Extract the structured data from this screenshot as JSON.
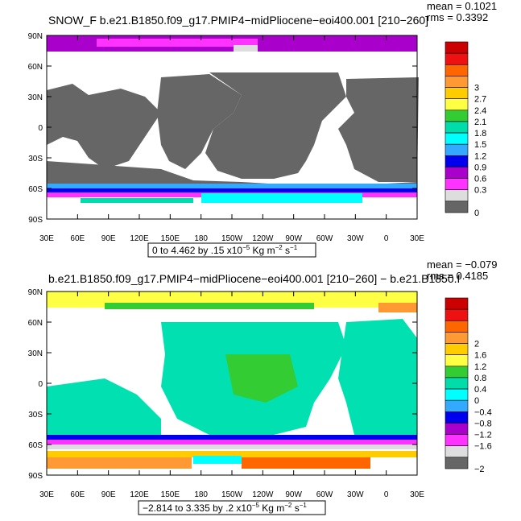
{
  "panels": [
    {
      "id": "top",
      "title": "SNOW_F  b.e21.B1850.f09_g17.PMIP4−midPliocene−eoi400.001  [210−260]",
      "stats": [
        "mean  =  0.1021",
        "rms  =  0.3392"
      ],
      "range_note": "0 to 4.462 by .15 x10",
      "range_exp": "−5",
      "range_units": " Kg m",
      "range_units_exp": "−2",
      "range_units_tail": " s",
      "range_units_tail_exp": "−1",
      "colorbar_labels": [
        "3",
        "2.7",
        "2.4",
        "2.1",
        "1.8",
        "1.5",
        "1.2",
        "0.9",
        "0.6",
        "0.3",
        "0"
      ],
      "colorbar_colors": [
        "#cc0000",
        "#ee1111",
        "#ff6600",
        "#ff9933",
        "#ffcc00",
        "#ffff44",
        "#33cc33",
        "#00ddaa",
        "#00ffff",
        "#33aaff",
        "#0000ee",
        "#aa00cc",
        "#ff33ff",
        "#dddddd",
        "#666666"
      ]
    },
    {
      "id": "bottom",
      "title": "b.e21.B1850.f09_g17.PMIP4−midPliocene−eoi400.001  [210−260]  −  b.e21.B1850.f",
      "stats": [
        "mean  =  −0.079",
        "rms  =  0.4185"
      ],
      "range_note": "−2.814 to 3.335 by .2 x10",
      "range_exp": "−5",
      "range_units": " Kg m",
      "range_units_exp": "−2",
      "range_units_tail": " s",
      "range_units_tail_exp": "−1",
      "colorbar_labels": [
        "2",
        "1.6",
        "1.2",
        "0.8",
        "0.4",
        "0",
        "−0.4",
        "−0.8",
        "−1.2",
        "−1.6",
        "−2"
      ],
      "colorbar_colors": [
        "#cc0000",
        "#ee1111",
        "#ff6600",
        "#ff9933",
        "#ffcc00",
        "#ffff44",
        "#33cc33",
        "#00ddaa",
        "#00ffff",
        "#33aaff",
        "#0000ee",
        "#aa00cc",
        "#ff33ff",
        "#dddddd",
        "#666666"
      ]
    }
  ],
  "axes": {
    "lat_labels": [
      "90N",
      "60N",
      "30N",
      "0",
      "30S",
      "60S",
      "90S"
    ],
    "lon_labels": [
      "30E",
      "60E",
      "90E",
      "120E",
      "150E",
      "180",
      "150W",
      "120W",
      "90W",
      "60W",
      "30W",
      "0",
      "30E"
    ]
  },
  "colors": {
    "land_top": "#666666",
    "ocean_mid": "#00e0b0",
    "ocean_low": "#22ddaa",
    "antarctic": "#ff9933",
    "arctic": "#ffff44"
  }
}
